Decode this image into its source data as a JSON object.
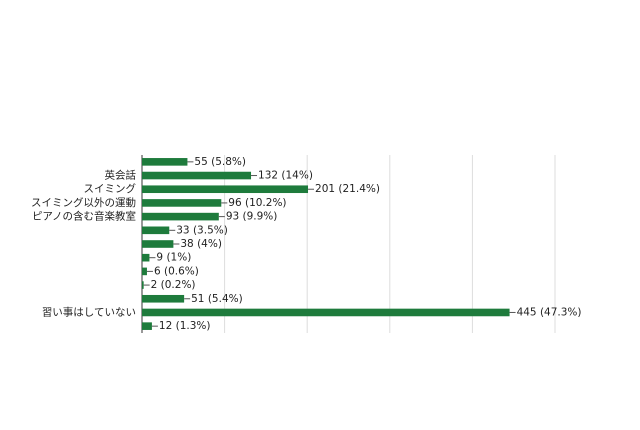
{
  "chart_data": {
    "type": "hbar",
    "categories": [
      null,
      "英会話",
      "スイミング",
      "スイミング以外の運動",
      "ピアノの含む音楽教室",
      null,
      null,
      null,
      null,
      null,
      null,
      "習い事はしていない",
      null
    ],
    "values": [
      55,
      132,
      201,
      96,
      93,
      33,
      38,
      9,
      6,
      2,
      51,
      445,
      12
    ],
    "value_labels": [
      "55 (5.8%)",
      "132 (14%)",
      "201 (21.4%)",
      "96 (10.2%)",
      "93 (9.9%)",
      "33 (3.5%)",
      "38 (4%)",
      "9 (1%)",
      "6 (0.6%)",
      "2 (0.2%)",
      "51 (5.4%)",
      "445 (47.3%)",
      "12 (1.3%)"
    ],
    "color": "#1e7b3c",
    "xlim": [
      0,
      500
    ],
    "xticks": [
      0,
      100,
      200,
      300,
      400,
      500
    ],
    "grid": true
  }
}
